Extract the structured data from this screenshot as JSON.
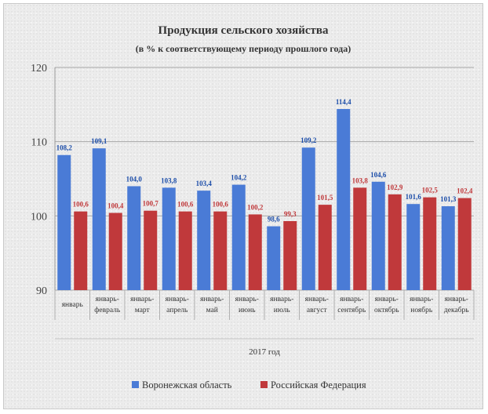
{
  "chart_data": {
    "type": "bar",
    "title": "Продукция сельского хозяйства",
    "subtitle": "(в % к соответствующему периоду прошлого года)",
    "xlabel": "2017 год",
    "ylim": [
      90,
      120
    ],
    "yticks": [
      90,
      100,
      110,
      120
    ],
    "grid": true,
    "legend": "bottom",
    "categories": [
      "январь",
      "январь-февраль",
      "январь-март",
      "январь-апрель",
      "январь-май",
      "январь-июнь",
      "январь-июль",
      "январь-август",
      "январь-сентябрь",
      "январь-октябрь",
      "январь-ноябрь",
      "январь-декабрь"
    ],
    "series": [
      {
        "name": "Воронежская область",
        "color": "#4a7bd6",
        "values": [
          108.2,
          109.1,
          104.0,
          103.8,
          103.4,
          104.2,
          98.6,
          109.2,
          114.4,
          104.6,
          101.6,
          101.3
        ],
        "labels": [
          "108,2",
          "109,1",
          "104,0",
          "103,8",
          "103,4",
          "104,2",
          "98,6",
          "109,2",
          "114,4",
          "104,6",
          "101,6",
          "101,3"
        ]
      },
      {
        "name": "Российская Федерация",
        "color": "#c0393b",
        "values": [
          100.6,
          100.4,
          100.7,
          100.6,
          100.6,
          100.2,
          99.3,
          101.5,
          103.8,
          102.9,
          102.5,
          102.4
        ],
        "labels": [
          "100,6",
          "100,4",
          "100,7",
          "100,6",
          "100,6",
          "100,2",
          "99,3",
          "101,5",
          "103,8",
          "102,9",
          "102,5",
          "102,4"
        ]
      }
    ]
  }
}
